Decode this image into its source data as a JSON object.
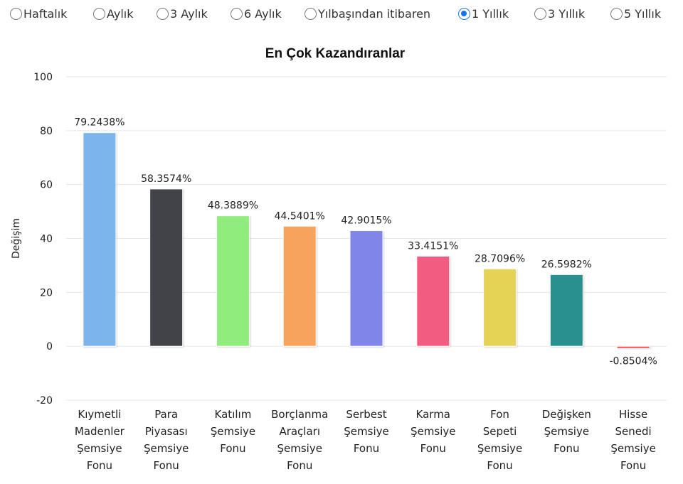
{
  "period_options": [
    {
      "label": "Haftalık",
      "checked": false
    },
    {
      "label": "Aylık",
      "checked": false
    },
    {
      "label": "3 Aylık",
      "checked": false
    },
    {
      "label": "6 Aylık",
      "checked": false
    },
    {
      "label": "Yılbaşından itibaren",
      "checked": false
    },
    {
      "label": "1 Yıllık",
      "checked": true
    },
    {
      "label": "3 Yıllık",
      "checked": false
    },
    {
      "label": "5 Yıllık",
      "checked": false
    }
  ],
  "chart_data": {
    "type": "bar",
    "title": "En Çok Kazandıranlar",
    "xlabel": "",
    "ylabel": "Değişim",
    "ylim": [
      -20,
      100
    ],
    "yticks": [
      -20,
      0,
      20,
      40,
      60,
      80,
      100
    ],
    "grid": true,
    "categories": [
      [
        "Kıymetli",
        "Madenler",
        "Şemsiye",
        "Fonu"
      ],
      [
        "Para",
        "Piyasası",
        "Şemsiye",
        "Fonu"
      ],
      [
        "Katılım",
        "Şemsiye",
        "Fonu"
      ],
      [
        "Borçlanma",
        "Araçları",
        "Şemsiye",
        "Fonu"
      ],
      [
        "Serbest",
        "Şemsiye",
        "Fonu"
      ],
      [
        "Karma",
        "Şemsiye",
        "Fonu"
      ],
      [
        "Fon",
        "Sepeti",
        "Şemsiye",
        "Fonu"
      ],
      [
        "Değişken",
        "Şemsiye",
        "Fonu"
      ],
      [
        "Hisse",
        "Senedi",
        "Şemsiye",
        "Fonu"
      ]
    ],
    "values": [
      79.2438,
      58.3574,
      48.3889,
      44.5401,
      42.9015,
      33.4151,
      28.7096,
      26.5982,
      -0.8504
    ],
    "value_labels": [
      "79.2438%",
      "58.3574%",
      "48.3889%",
      "44.5401%",
      "42.9015%",
      "33.4151%",
      "28.7096%",
      "26.5982%",
      "-0.8504%"
    ],
    "colors": [
      "#7cb5ec",
      "#434348",
      "#90ed7d",
      "#f7a35c",
      "#8085e9",
      "#f15c80",
      "#e4d354",
      "#2b908f",
      "#f45b5b"
    ]
  }
}
